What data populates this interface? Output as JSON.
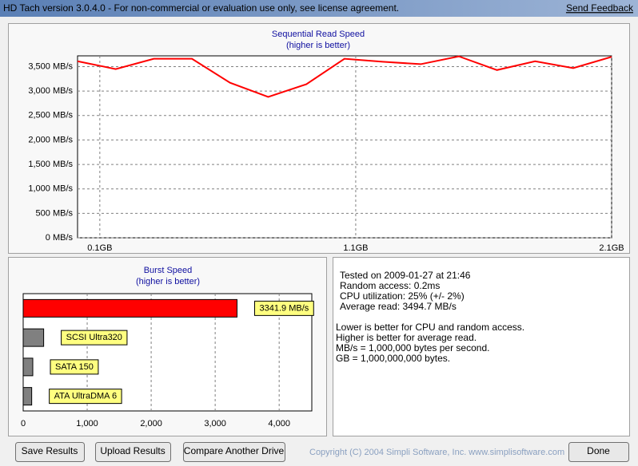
{
  "window": {
    "title": "HD Tach version 3.0.4.0  - For non-commercial or evaluation use only, see license agreement.",
    "feedback": "Send Feedback"
  },
  "chart_data": [
    {
      "type": "line",
      "title": "Sequential Read Speed",
      "subtitle": "(higher is better)",
      "x": [
        0.013,
        0.162,
        0.311,
        0.46,
        0.609,
        0.758,
        0.907,
        1.056,
        1.205,
        1.354,
        1.503,
        1.652,
        1.801,
        1.95,
        2.1
      ],
      "values": [
        3610,
        3450,
        3660,
        3660,
        3170,
        2880,
        3140,
        3660,
        3600,
        3550,
        3710,
        3430,
        3610,
        3470,
        3700
      ],
      "color": "#ff0000",
      "xlim": [
        0.013,
        2.1
      ],
      "xticks": [
        {
          "value": 0.1,
          "label": "0.1GB"
        },
        {
          "value": 1.1,
          "label": "1.1GB"
        },
        {
          "value": 2.1,
          "label": "2.1GB"
        }
      ],
      "ylim": [
        0,
        3720
      ],
      "yticks": [
        {
          "value": 0,
          "label": "0 MB/s"
        },
        {
          "value": 500,
          "label": "500 MB/s"
        },
        {
          "value": 1000,
          "label": "1,000 MB/s"
        },
        {
          "value": 1500,
          "label": "1,500 MB/s"
        },
        {
          "value": 2000,
          "label": "2,000 MB/s"
        },
        {
          "value": 2500,
          "label": "2,500 MB/s"
        },
        {
          "value": 3000,
          "label": "3,000 MB/s"
        },
        {
          "value": 3500,
          "label": "3,500 MB/s"
        }
      ],
      "grid": true
    },
    {
      "type": "hbar",
      "title": "Burst Speed",
      "subtitle": "(higher is better)",
      "categories": [
        null,
        "SCSI Ultra320",
        "SATA 150",
        "ATA UltraDMA 6"
      ],
      "values": [
        3341.9,
        320,
        150,
        133
      ],
      "value_labels": [
        "3341.9 MB/s",
        null,
        null,
        null
      ],
      "colors": [
        "#ff0000",
        "#808080",
        "#808080",
        "#808080"
      ],
      "xlim": [
        0,
        4510
      ],
      "xticks": [
        0,
        {
          "value": 1000,
          "label": "1,000"
        },
        {
          "value": 2000,
          "label": "2,000"
        },
        {
          "value": 3000,
          "label": "3,000"
        },
        {
          "value": 4000,
          "label": "4,000"
        }
      ],
      "grid": true
    }
  ],
  "info": [
    "Tested on 2009-01-27 at 21:46",
    "Random access: 0.2ms",
    "CPU utilization: 25% (+/- 2%)",
    "Average read: 3494.7 MB/s"
  ],
  "notes": [
    "Lower is better for CPU and random access.",
    "Higher is better for average read.",
    "MB/s = 1,000,000 bytes per second.",
    "GB = 1,000,000,000 bytes."
  ],
  "buttons": [
    "Save Results",
    "Upload Results",
    "Compare Another Drive"
  ],
  "copyright": "Copyright (C) 2004 Simpli Software, Inc. www.simplisoftware.com",
  "done": "Done"
}
